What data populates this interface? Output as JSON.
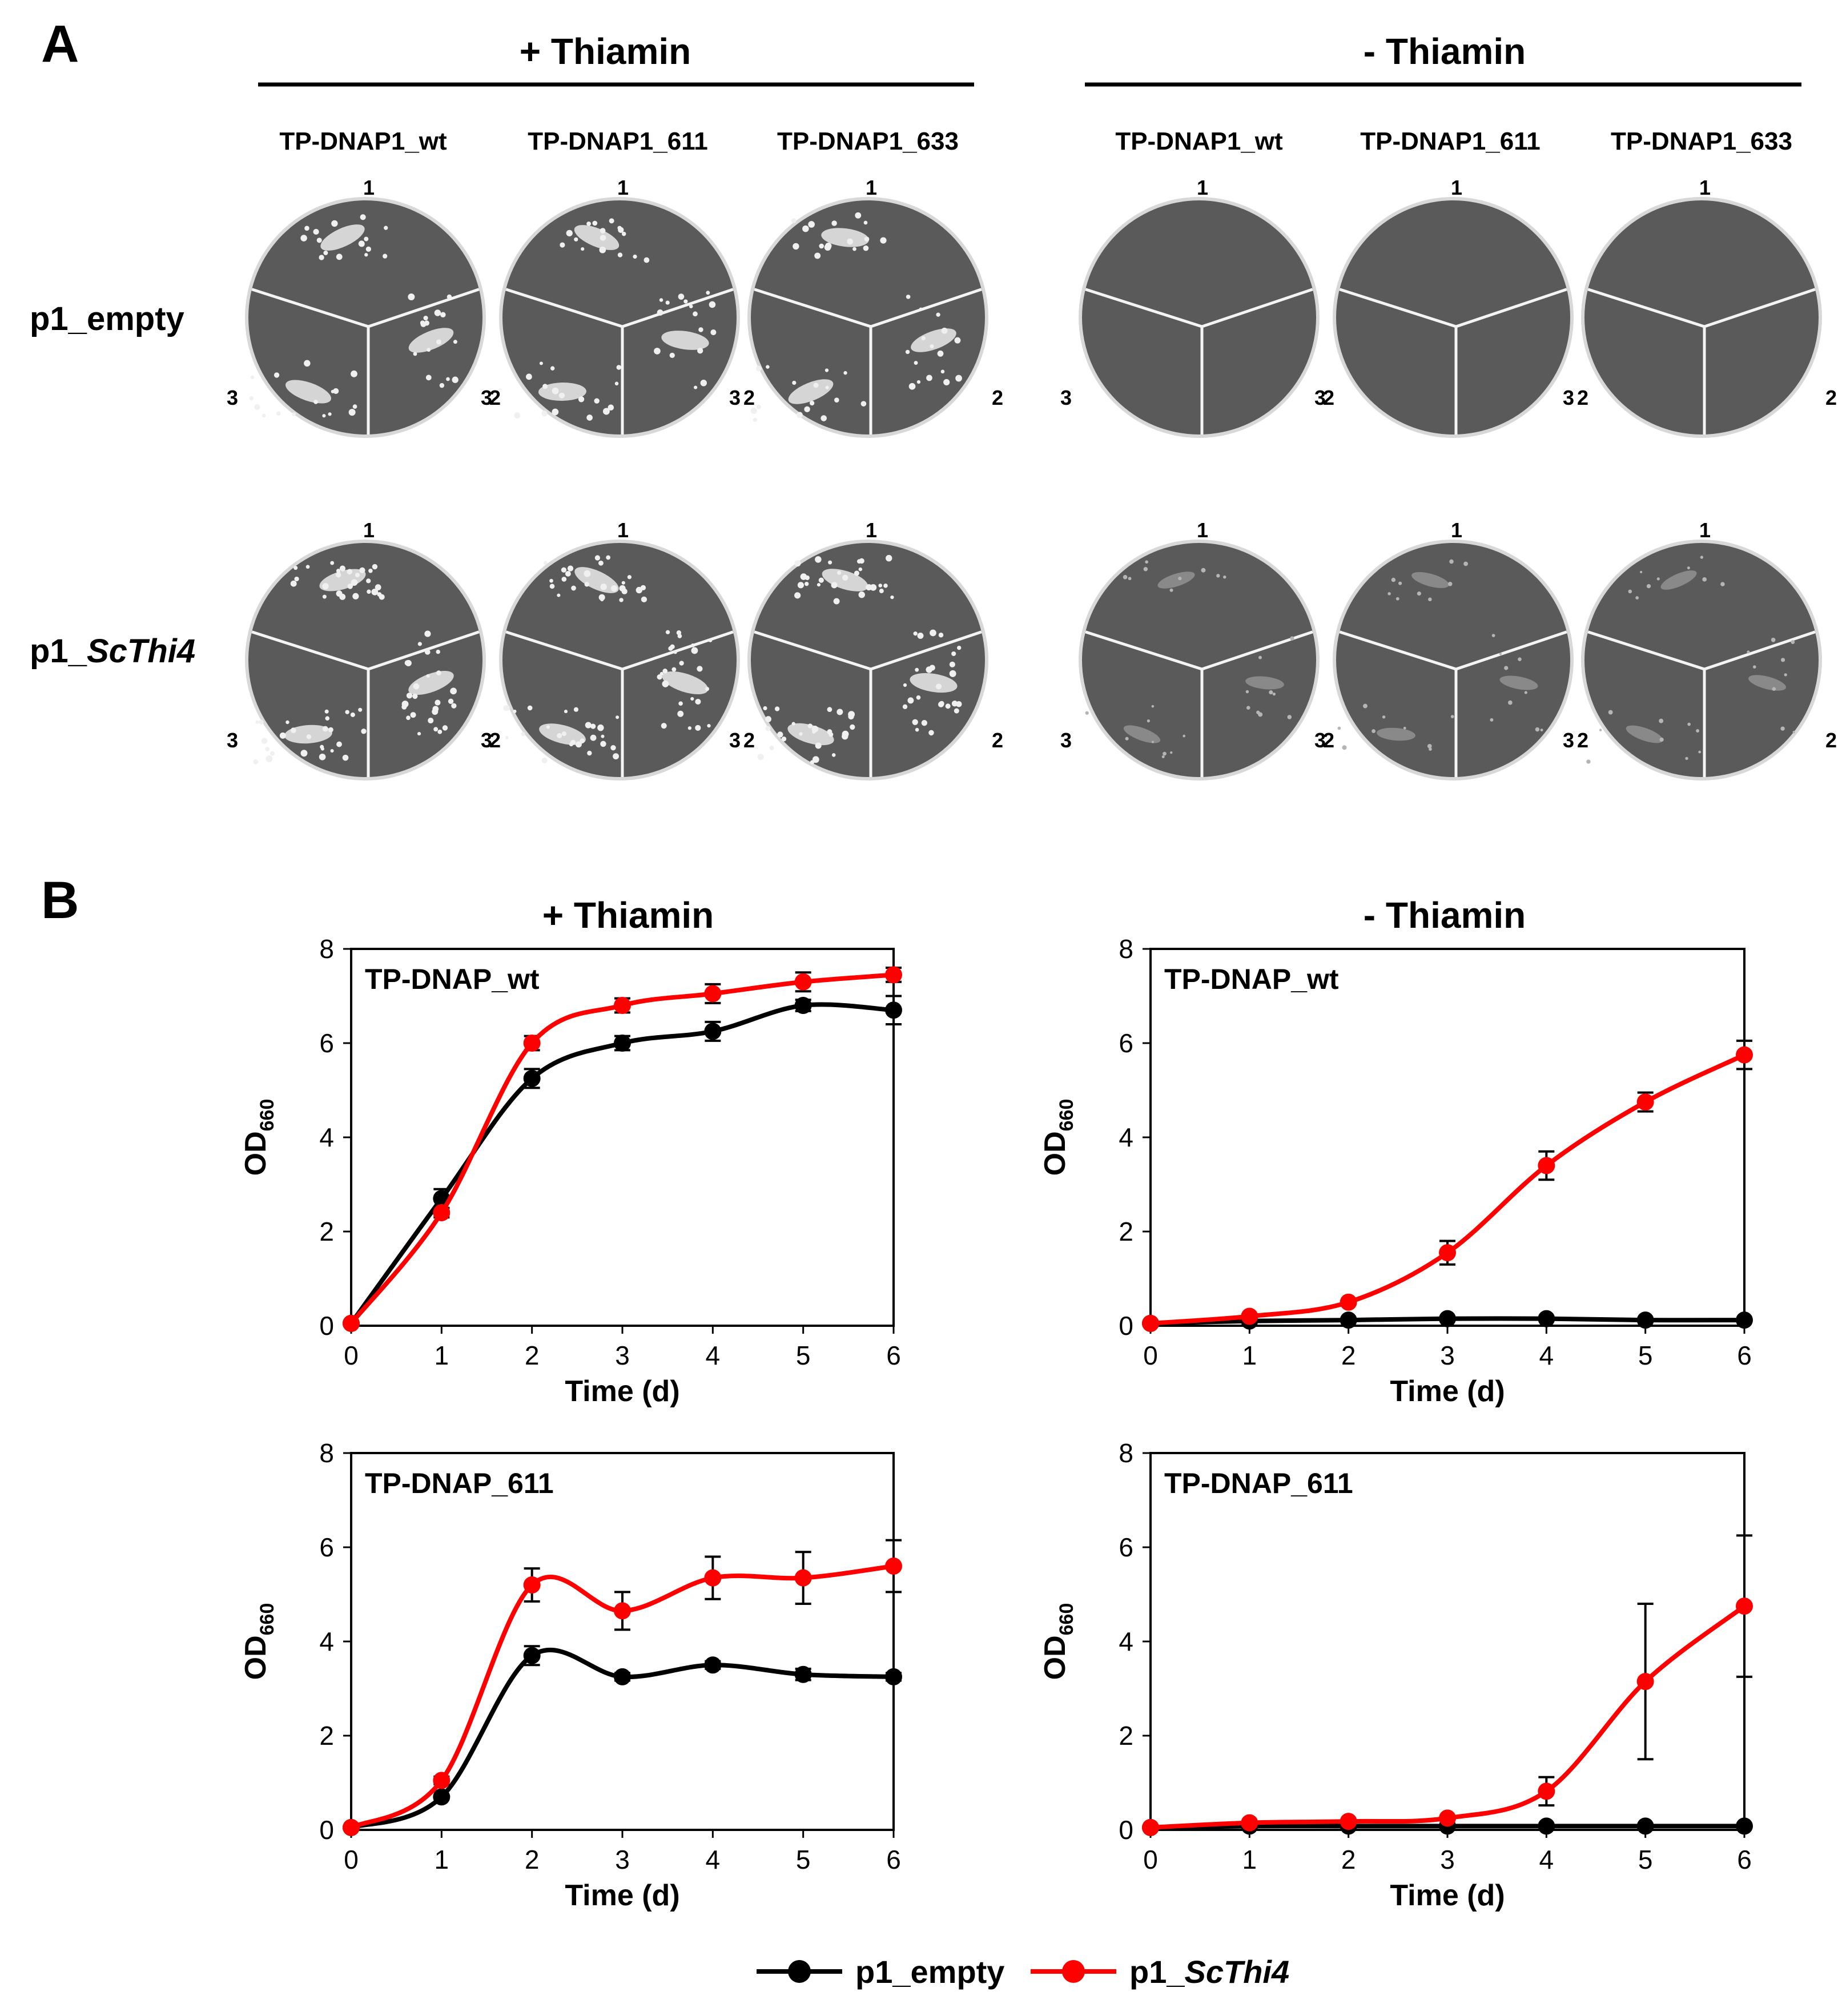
{
  "panels": {
    "a": {
      "letter": "A",
      "conditions": [
        {
          "label": "+ Thiamin",
          "strains": [
            "TP-DNAP1_wt",
            "TP-DNAP1_611",
            "TP-DNAP1_633"
          ]
        },
        {
          "label": "- Thiamin",
          "strains": [
            "TP-DNAP1_wt",
            "TP-DNAP1_611",
            "TP-DNAP1_633"
          ]
        }
      ],
      "rows": [
        {
          "prefix": "p1_",
          "name": "empty",
          "italic": false
        },
        {
          "prefix": "p1_",
          "name": "ScThi4",
          "italic": true
        }
      ],
      "sector_numbers": [
        "1",
        "2",
        "3"
      ]
    },
    "b": {
      "letter": "B",
      "column_titles": [
        "+ Thiamin",
        "- Thiamin"
      ]
    }
  },
  "legend": {
    "items": [
      {
        "prefix": "p1_",
        "name": "empty",
        "italic": false,
        "color": "#000000"
      },
      {
        "prefix": "p1_",
        "name": "ScThi4",
        "italic": true,
        "color": "#ff0000"
      }
    ]
  },
  "colors": {
    "p1_empty": "#000000",
    "p1_ScThi4": "#ff0000",
    "plate": "#5a5a5a",
    "divider": "#f4f4f4"
  },
  "chart_data": [
    {
      "type": "line",
      "title": "TP-DNAP_wt",
      "condition": "+ Thiamin",
      "xlabel": "Time (d)",
      "ylabel": "OD",
      "ylabel_sub": "660",
      "x": [
        0,
        1,
        2,
        3,
        4,
        5,
        6
      ],
      "xlim": [
        0,
        6
      ],
      "ylim": [
        0,
        8
      ],
      "xticks": [
        0,
        1,
        2,
        3,
        4,
        5,
        6
      ],
      "yticks": [
        0,
        2,
        4,
        6,
        8
      ],
      "series": [
        {
          "name": "p1_empty",
          "values": [
            0.05,
            2.7,
            5.25,
            6.0,
            6.25,
            6.8,
            6.7
          ],
          "errors": [
            0.02,
            0.2,
            0.2,
            0.15,
            0.2,
            0.12,
            0.3
          ]
        },
        {
          "name": "p1_ScThi4",
          "values": [
            0.05,
            2.4,
            6.0,
            6.8,
            7.05,
            7.3,
            7.45
          ],
          "errors": [
            0.02,
            0.1,
            0.15,
            0.15,
            0.2,
            0.2,
            0.15
          ]
        }
      ]
    },
    {
      "type": "line",
      "title": "TP-DNAP_wt",
      "condition": "- Thiamin",
      "xlabel": "Time (d)",
      "ylabel": "OD",
      "ylabel_sub": "660",
      "x": [
        0,
        1,
        2,
        3,
        4,
        5,
        6
      ],
      "xlim": [
        0,
        6
      ],
      "ylim": [
        0,
        8
      ],
      "xticks": [
        0,
        1,
        2,
        3,
        4,
        5,
        6
      ],
      "yticks": [
        0,
        2,
        4,
        6,
        8
      ],
      "series": [
        {
          "name": "p1_empty",
          "values": [
            0.05,
            0.1,
            0.12,
            0.15,
            0.15,
            0.12,
            0.12
          ],
          "errors": [
            0.01,
            0.01,
            0.01,
            0.01,
            0.01,
            0.01,
            0.01
          ]
        },
        {
          "name": "p1_ScThi4",
          "values": [
            0.05,
            0.2,
            0.5,
            1.55,
            3.4,
            4.75,
            5.75
          ],
          "errors": [
            0.01,
            0.05,
            0.05,
            0.25,
            0.3,
            0.2,
            0.3
          ]
        }
      ]
    },
    {
      "type": "line",
      "title": "TP-DNAP_611",
      "condition": "+ Thiamin",
      "xlabel": "Time (d)",
      "ylabel": "OD",
      "ylabel_sub": "660",
      "x": [
        0,
        1,
        2,
        3,
        4,
        5,
        6
      ],
      "xlim": [
        0,
        6
      ],
      "ylim": [
        0,
        8
      ],
      "xticks": [
        0,
        1,
        2,
        3,
        4,
        5,
        6
      ],
      "yticks": [
        0,
        2,
        4,
        6,
        8
      ],
      "series": [
        {
          "name": "p1_empty",
          "values": [
            0.05,
            0.7,
            3.7,
            3.25,
            3.5,
            3.3,
            3.25
          ],
          "errors": [
            0.01,
            0.05,
            0.2,
            0.08,
            0.08,
            0.12,
            0.08
          ]
        },
        {
          "name": "p1_ScThi4",
          "values": [
            0.05,
            1.05,
            5.2,
            4.65,
            5.35,
            5.35,
            5.6
          ],
          "errors": [
            0.01,
            0.08,
            0.35,
            0.4,
            0.45,
            0.55,
            0.55
          ]
        }
      ]
    },
    {
      "type": "line",
      "title": "TP-DNAP_611",
      "condition": "- Thiamin",
      "xlabel": "Time (d)",
      "ylabel": "OD",
      "ylabel_sub": "660",
      "x": [
        0,
        1,
        2,
        3,
        4,
        5,
        6
      ],
      "xlim": [
        0,
        6
      ],
      "ylim": [
        0,
        8
      ],
      "xticks": [
        0,
        1,
        2,
        3,
        4,
        5,
        6
      ],
      "yticks": [
        0,
        2,
        4,
        6,
        8
      ],
      "series": [
        {
          "name": "p1_empty",
          "values": [
            0.05,
            0.08,
            0.08,
            0.08,
            0.08,
            0.08,
            0.08
          ],
          "errors": [
            0.01,
            0.01,
            0.01,
            0.01,
            0.01,
            0.01,
            0.01
          ]
        },
        {
          "name": "p1_ScThi4",
          "values": [
            0.05,
            0.15,
            0.18,
            0.25,
            0.82,
            3.15,
            4.75
          ],
          "errors": [
            0.01,
            0.03,
            0.03,
            0.05,
            0.3,
            1.65,
            1.5
          ]
        }
      ]
    }
  ]
}
